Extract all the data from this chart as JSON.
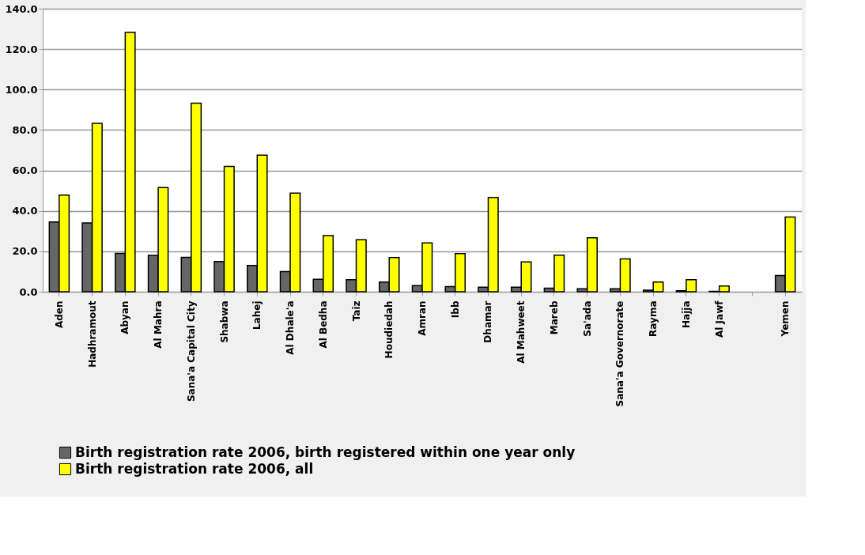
{
  "chart_data": {
    "type": "bar",
    "categories": [
      "Aden",
      "Hadhramout",
      "Abyan",
      "Al Mahra",
      "Sana'a Capital City",
      "Shabwa",
      "Lahej",
      "Al Dhale'a",
      "Al Bedha",
      "Taiz",
      "Houdiedah",
      "Amran",
      "Ibb",
      "Dhamar",
      "Al Mahweet",
      "Mareb",
      "Sa'ada",
      "Sana'a Governorate",
      "Rayma",
      "Hajja",
      "Al Jawf",
      null,
      "Yemen"
    ],
    "series": [
      {
        "name": "Birth registration rate 2006, birth registered within one year only",
        "color": "#666666",
        "values": [
          34.5,
          34,
          19,
          18,
          17,
          15,
          13,
          10,
          6.2,
          6,
          4.8,
          3,
          2.5,
          2.2,
          2.2,
          1.8,
          1.5,
          1.5,
          0.8,
          0.5,
          0.2,
          null,
          8
        ]
      },
      {
        "name": "Birth registration rate 2006, all",
        "color": "#ffff00",
        "values": [
          47.8,
          83.3,
          128.3,
          51.5,
          93.3,
          62,
          67.6,
          48.8,
          27.8,
          25.7,
          16.9,
          24.1,
          18.9,
          46.6,
          14.8,
          18.1,
          26.7,
          16.2,
          4.8,
          6,
          2.8,
          null,
          37
        ]
      }
    ],
    "ylim": [
      0,
      140
    ],
    "yticks": [
      {
        "value": 0,
        "label": "0.0"
      },
      {
        "value": 20,
        "label": "20.0"
      },
      {
        "value": 40,
        "label": "40.0"
      },
      {
        "value": 60,
        "label": "60.0"
      },
      {
        "value": 80,
        "label": "80.0"
      },
      {
        "value": 100,
        "label": "100.0"
      },
      {
        "value": 120,
        "label": "120.0"
      },
      {
        "value": 140,
        "label": "140.0"
      }
    ],
    "grid": "y",
    "legend": "bottom"
  }
}
